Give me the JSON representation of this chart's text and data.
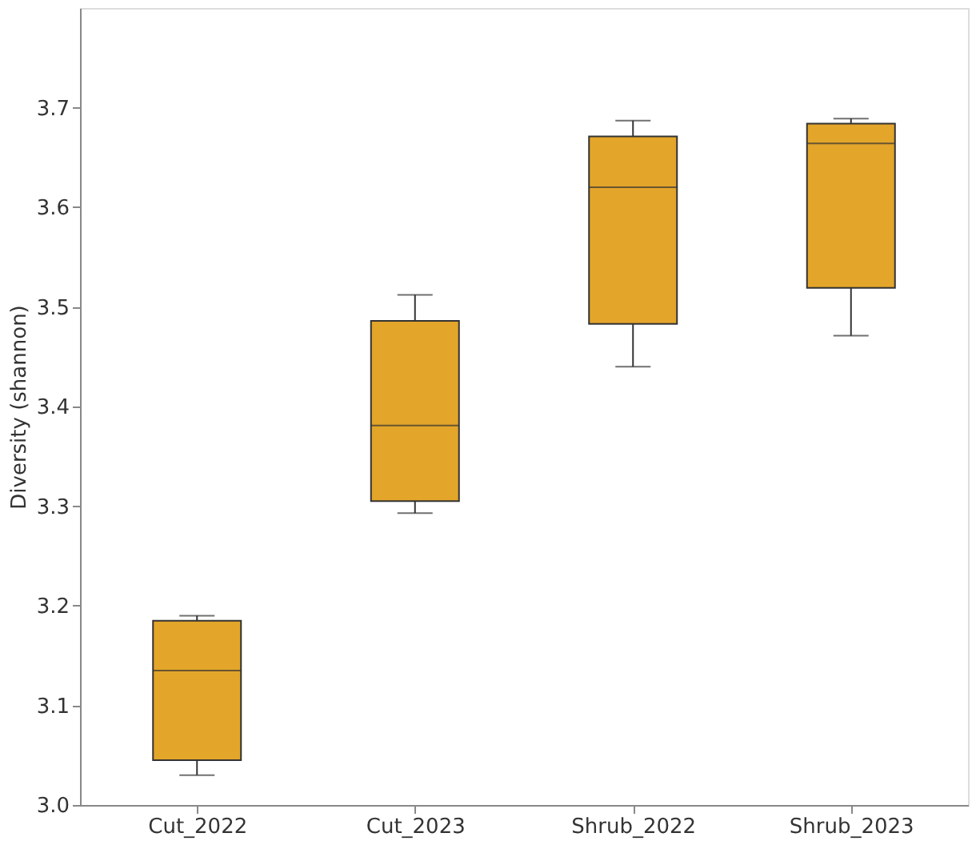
{
  "chart_data": {
    "type": "box",
    "ylabel": "Diversity (shannon)",
    "categories": [
      "Cut_2022",
      "Cut_2023",
      "Shrub_2022",
      "Shrub_2023"
    ],
    "color": "#e3a52a",
    "boxes": [
      {
        "low": 3.03,
        "q1": 3.045,
        "median": 3.135,
        "q3": 3.185,
        "high": 3.19
      },
      {
        "low": 3.293,
        "q1": 3.305,
        "median": 3.381,
        "q3": 3.486,
        "high": 3.512
      },
      {
        "low": 3.44,
        "q1": 3.483,
        "median": 3.62,
        "q3": 3.671,
        "high": 3.687
      },
      {
        "low": 3.471,
        "q1": 3.519,
        "median": 3.664,
        "q3": 3.684,
        "high": 3.689
      }
    ],
    "ylim": [
      3.0,
      3.8
    ],
    "yticks": [
      {
        "value": 3.0,
        "label": "3.0"
      },
      3.1,
      3.2,
      3.3,
      3.4,
      3.5,
      3.6,
      3.7
    ],
    "grid": false
  }
}
